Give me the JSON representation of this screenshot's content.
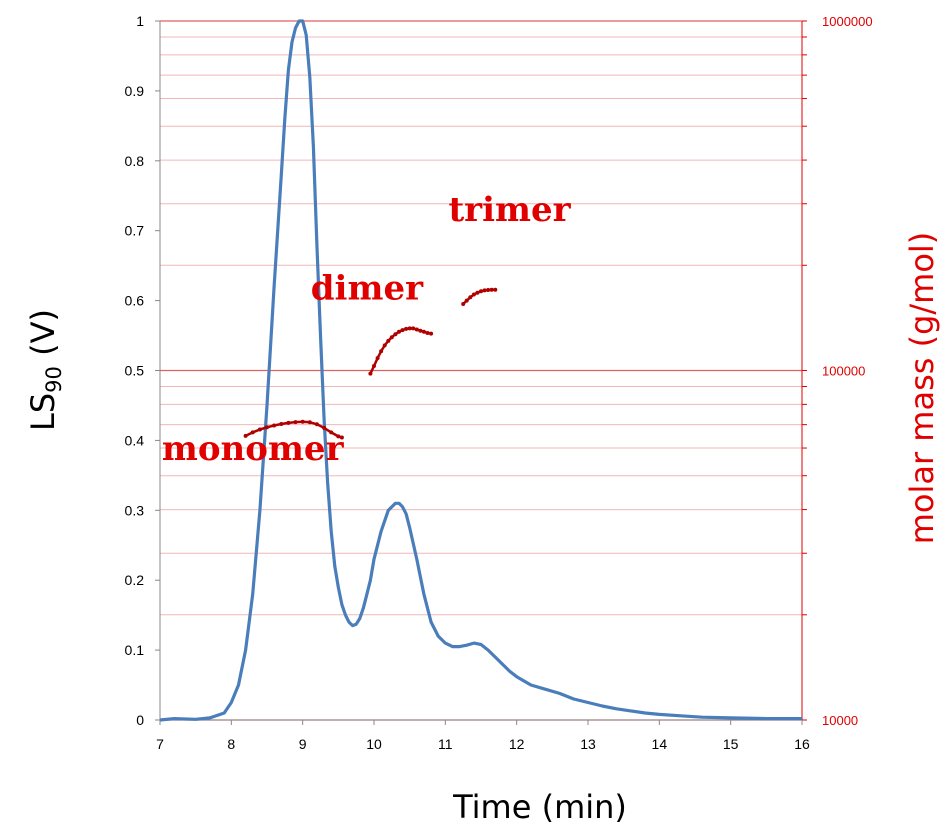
{
  "chart_data": {
    "type": "line",
    "xlabel": "Time (min)",
    "ylabel": "LS",
    "ylabel_sub": "90",
    "ylabel_suffix": " (V)",
    "y2label": "molar mass (g/mol)",
    "xlim": [
      7,
      16
    ],
    "ylim": [
      0,
      1
    ],
    "y2lim": [
      10000,
      1000000
    ],
    "y2scale": "log",
    "xticks": [
      "7",
      "8",
      "9",
      "10",
      "11",
      "12",
      "13",
      "14",
      "15",
      "16"
    ],
    "yticks": [
      "0",
      "0.1",
      "0.2",
      "0.3",
      "0.4",
      "0.5",
      "0.6",
      "0.7",
      "0.8",
      "0.9",
      "1"
    ],
    "y2ticks": [
      "10000",
      "100000",
      "1000000"
    ],
    "grid": "horizontal, right log axis minor lines",
    "colors": {
      "ls_line": "#4a7ebb",
      "mass_marker": "#b00000",
      "mass_axis": "#e00000",
      "grid_major": "#e06060",
      "grid_minor": "#f2b8b8"
    },
    "series": [
      {
        "axis": "left",
        "x": [
          7.0,
          7.2,
          7.5,
          7.7,
          7.9,
          8.0,
          8.1,
          8.2,
          8.3,
          8.4,
          8.5,
          8.6,
          8.65,
          8.7,
          8.75,
          8.8,
          8.85,
          8.9,
          8.95,
          9.0,
          9.05,
          9.1,
          9.15,
          9.2,
          9.25,
          9.3,
          9.35,
          9.4,
          9.45,
          9.5,
          9.55,
          9.6,
          9.65,
          9.7,
          9.75,
          9.8,
          9.85,
          9.9,
          9.95,
          10.0,
          10.1,
          10.2,
          10.3,
          10.35,
          10.4,
          10.45,
          10.5,
          10.6,
          10.7,
          10.8,
          10.9,
          11.0,
          11.1,
          11.2,
          11.3,
          11.4,
          11.5,
          11.6,
          11.7,
          11.8,
          11.9,
          12.0,
          12.2,
          12.4,
          12.6,
          12.8,
          13.0,
          13.2,
          13.4,
          13.6,
          13.8,
          14.0,
          14.3,
          14.6,
          15.0,
          15.5,
          16.0
        ],
        "values": [
          0.0,
          0.002,
          0.001,
          0.003,
          0.01,
          0.025,
          0.05,
          0.1,
          0.18,
          0.3,
          0.45,
          0.62,
          0.7,
          0.78,
          0.86,
          0.93,
          0.97,
          0.99,
          1.0,
          1.0,
          0.98,
          0.92,
          0.82,
          0.68,
          0.55,
          0.43,
          0.34,
          0.27,
          0.22,
          0.19,
          0.165,
          0.15,
          0.14,
          0.135,
          0.137,
          0.145,
          0.16,
          0.18,
          0.2,
          0.23,
          0.27,
          0.3,
          0.31,
          0.31,
          0.305,
          0.295,
          0.275,
          0.23,
          0.18,
          0.14,
          0.12,
          0.11,
          0.105,
          0.105,
          0.107,
          0.11,
          0.108,
          0.1,
          0.09,
          0.08,
          0.07,
          0.062,
          0.05,
          0.044,
          0.038,
          0.03,
          0.025,
          0.02,
          0.016,
          0.013,
          0.01,
          0.008,
          0.006,
          0.004,
          0.003,
          0.002,
          0.002
        ]
      },
      {
        "axis": "right",
        "label": "monomer",
        "x": [
          8.2,
          8.3,
          8.4,
          8.5,
          8.6,
          8.7,
          8.8,
          8.9,
          9.0,
          9.1,
          9.2,
          9.3,
          9.4,
          9.5,
          9.55
        ],
        "values": [
          65000,
          66500,
          67800,
          68800,
          69600,
          70300,
          70800,
          71200,
          71300,
          71100,
          70200,
          68500,
          66500,
          64800,
          64300
        ]
      },
      {
        "axis": "right",
        "label": "dimer",
        "x": [
          9.95,
          10.0,
          10.05,
          10.1,
          10.15,
          10.2,
          10.25,
          10.3,
          10.35,
          10.4,
          10.45,
          10.5,
          10.55,
          10.6,
          10.65,
          10.7,
          10.75,
          10.8
        ],
        "values": [
          98000,
          103000,
          108500,
          113500,
          118000,
          121500,
          124500,
          127000,
          129000,
          130500,
          131500,
          132000,
          132000,
          131000,
          130000,
          129000,
          128000,
          127500
        ]
      },
      {
        "axis": "right",
        "label": "trimer",
        "x": [
          11.25,
          11.3,
          11.35,
          11.4,
          11.45,
          11.5,
          11.55,
          11.6,
          11.65,
          11.7
        ],
        "values": [
          155000,
          158500,
          162000,
          165000,
          167000,
          168500,
          169500,
          170000,
          170200,
          170300
        ]
      }
    ],
    "annotations": [
      {
        "text": "monomer",
        "x": 8.3,
        "y2": 60000
      },
      {
        "text": "dimer",
        "x": 9.9,
        "y2": 173000
      },
      {
        "text": "trimer",
        "x": 11.9,
        "y2": 290000
      }
    ]
  }
}
